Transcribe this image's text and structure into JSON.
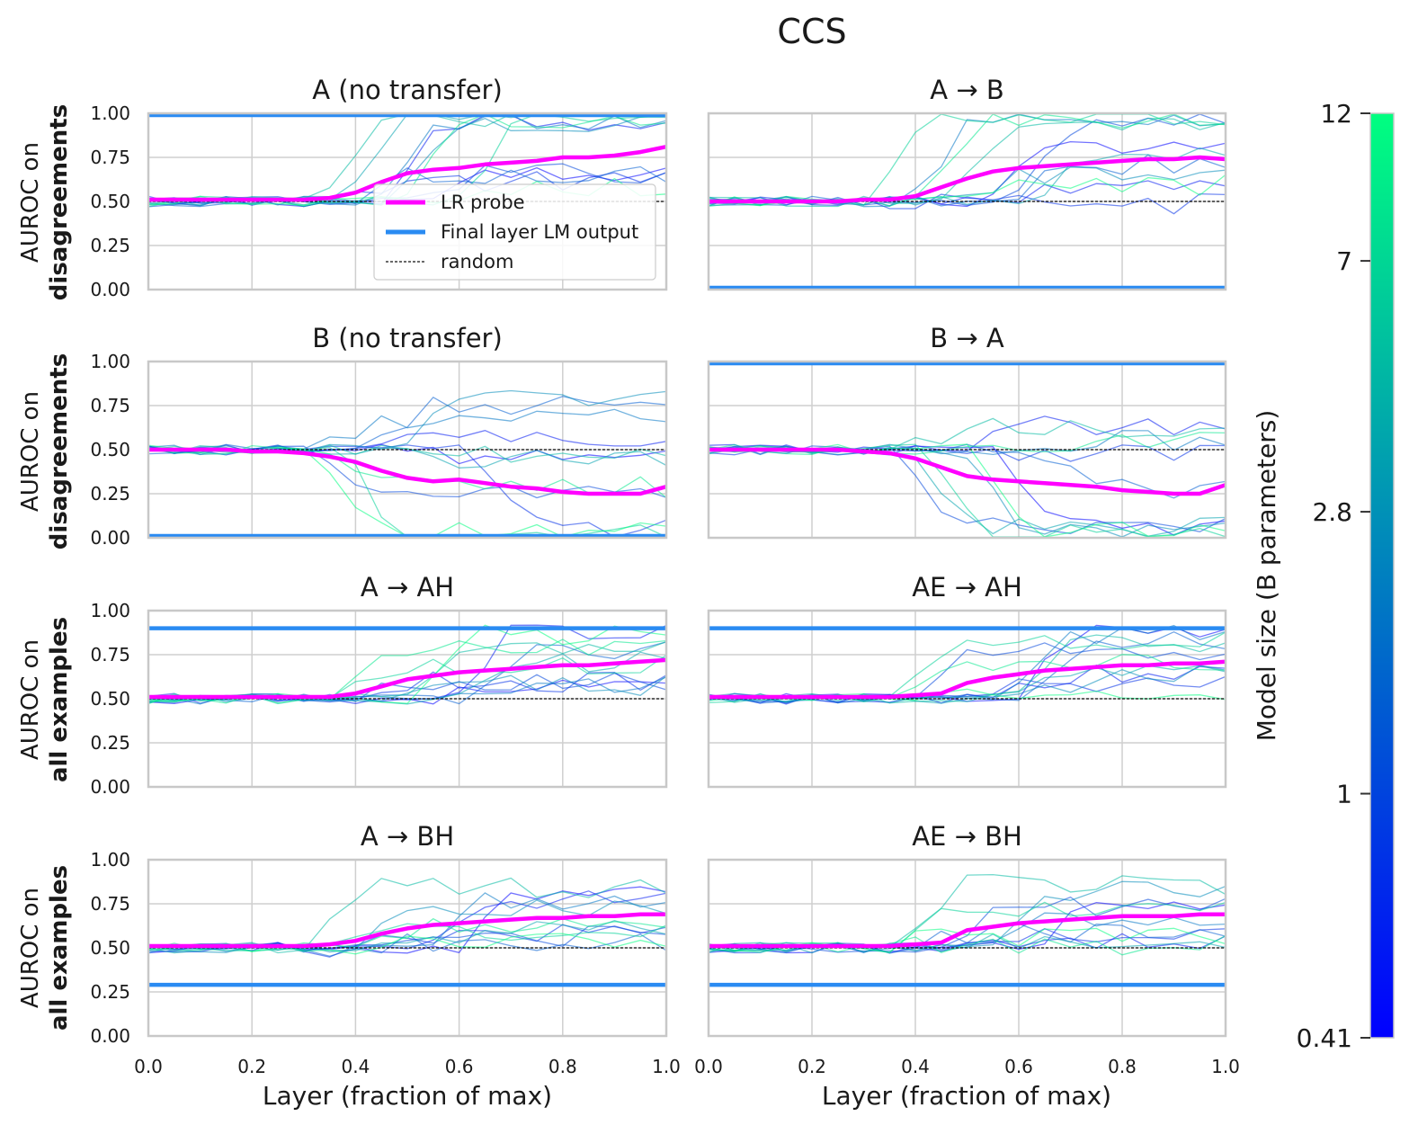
{
  "figure": {
    "suptitle": "CCS",
    "xlabel": "Layer (fraction of max)",
    "colors": {
      "lr_probe": "#ff00ff",
      "final_layer": "#2a8bf2",
      "random": "#111111",
      "grid": "#cfcfcf",
      "spine": "#c8c8c8"
    }
  },
  "row_labels": [
    {
      "line1": "AUROC on",
      "line2": "disagreements"
    },
    {
      "line1": "AUROC on",
      "line2": "disagreements"
    },
    {
      "line1": "AUROC on",
      "line2": "all examples"
    },
    {
      "line1": "AUROC on",
      "line2": "all examples"
    }
  ],
  "legend": {
    "items": [
      "LR probe",
      "Final layer LM output",
      "random"
    ],
    "location": "center-right of top-left panel"
  },
  "x_ticks": [
    "0.0",
    "0.2",
    "0.4",
    "0.6",
    "0.8",
    "1.0"
  ],
  "y_ticks": [
    "0.00",
    "0.25",
    "0.50",
    "0.75",
    "1.00"
  ],
  "colorbar": {
    "label": "Model size (B parameters)",
    "ticks": [
      {
        "label": "12",
        "value": 12
      },
      {
        "label": "7",
        "value": 7
      },
      {
        "label": "2.8",
        "value": 2.8
      },
      {
        "label": "1",
        "value": 1
      },
      {
        "label": "0.41",
        "value": 0.41
      }
    ],
    "colormap": "winter",
    "scale": "log"
  },
  "chart_data": [
    {
      "type": "line",
      "title": "A (no transfer)",
      "xlabel": "Layer (fraction of max)",
      "ylabel": "AUROC on disagreements",
      "xlim": [
        0,
        1
      ],
      "ylim": [
        0,
        1
      ],
      "x": [
        0.0,
        0.05,
        0.1,
        0.15,
        0.2,
        0.25,
        0.3,
        0.35,
        0.4,
        0.45,
        0.5,
        0.55,
        0.6,
        0.65,
        0.7,
        0.75,
        0.8,
        0.85,
        0.9,
        0.95,
        1.0
      ],
      "series": [
        {
          "name": "LR probe",
          "values": [
            0.51,
            0.51,
            0.51,
            0.51,
            0.51,
            0.51,
            0.51,
            0.52,
            0.55,
            0.61,
            0.66,
            0.68,
            0.69,
            0.71,
            0.72,
            0.73,
            0.75,
            0.75,
            0.76,
            0.78,
            0.81
          ]
        },
        {
          "name": "Final layer LM output",
          "constant": 0.99
        },
        {
          "name": "random",
          "constant": 0.5
        }
      ],
      "model_curves": "faint per-model curves (0.41B-12B), mostly near 0.5 before layer 0.4 then spreading toward 1.0"
    },
    {
      "type": "line",
      "title": "A → B",
      "xlabel": "Layer (fraction of max)",
      "ylabel": "",
      "xlim": [
        0,
        1
      ],
      "ylim": [
        0,
        1
      ],
      "x": [
        0.0,
        0.05,
        0.1,
        0.15,
        0.2,
        0.25,
        0.3,
        0.35,
        0.4,
        0.45,
        0.5,
        0.55,
        0.6,
        0.65,
        0.7,
        0.75,
        0.8,
        0.85,
        0.9,
        0.95,
        1.0
      ],
      "series": [
        {
          "name": "LR probe",
          "values": [
            0.5,
            0.5,
            0.5,
            0.5,
            0.5,
            0.5,
            0.51,
            0.51,
            0.53,
            0.58,
            0.63,
            0.67,
            0.69,
            0.7,
            0.71,
            0.72,
            0.73,
            0.74,
            0.74,
            0.75,
            0.74
          ]
        },
        {
          "name": "Final layer LM output",
          "constant": 0.01
        },
        {
          "name": "random",
          "constant": 0.5
        }
      ],
      "model_curves": "faint per-model curves, several rising toward 1.0 after layer 0.4"
    },
    {
      "type": "line",
      "title": "B (no transfer)",
      "xlabel": "Layer (fraction of max)",
      "ylabel": "AUROC on disagreements",
      "xlim": [
        0,
        1
      ],
      "ylim": [
        0,
        1
      ],
      "x": [
        0.0,
        0.05,
        0.1,
        0.15,
        0.2,
        0.25,
        0.3,
        0.35,
        0.4,
        0.45,
        0.5,
        0.55,
        0.6,
        0.65,
        0.7,
        0.75,
        0.8,
        0.85,
        0.9,
        0.95,
        1.0
      ],
      "series": [
        {
          "name": "LR probe",
          "values": [
            0.5,
            0.5,
            0.5,
            0.5,
            0.49,
            0.49,
            0.48,
            0.46,
            0.43,
            0.38,
            0.34,
            0.32,
            0.33,
            0.31,
            0.29,
            0.28,
            0.26,
            0.25,
            0.25,
            0.25,
            0.29
          ]
        },
        {
          "name": "Final layer LM output",
          "constant": 0.01
        },
        {
          "name": "random",
          "constant": 0.5
        }
      ],
      "model_curves": "faint per-model curves, many dropping toward 0.0 after layer 0.4"
    },
    {
      "type": "line",
      "title": "B → A",
      "xlabel": "Layer (fraction of max)",
      "ylabel": "",
      "xlim": [
        0,
        1
      ],
      "ylim": [
        0,
        1
      ],
      "x": [
        0.0,
        0.05,
        0.1,
        0.15,
        0.2,
        0.25,
        0.3,
        0.35,
        0.4,
        0.45,
        0.5,
        0.55,
        0.6,
        0.65,
        0.7,
        0.75,
        0.8,
        0.85,
        0.9,
        0.95,
        1.0
      ],
      "series": [
        {
          "name": "LR probe",
          "values": [
            0.5,
            0.5,
            0.5,
            0.5,
            0.5,
            0.5,
            0.49,
            0.48,
            0.45,
            0.4,
            0.35,
            0.33,
            0.32,
            0.31,
            0.3,
            0.29,
            0.27,
            0.26,
            0.25,
            0.25,
            0.3
          ]
        },
        {
          "name": "Final layer LM output",
          "constant": 0.99
        },
        {
          "name": "random",
          "constant": 0.5
        }
      ],
      "model_curves": "faint per-model curves, many dropping toward 0.0 after layer 0.4"
    },
    {
      "type": "line",
      "title": "A → AH",
      "xlabel": "Layer (fraction of max)",
      "ylabel": "AUROC on all examples",
      "xlim": [
        0,
        1
      ],
      "ylim": [
        0,
        1
      ],
      "x": [
        0.0,
        0.05,
        0.1,
        0.15,
        0.2,
        0.25,
        0.3,
        0.35,
        0.4,
        0.45,
        0.5,
        0.55,
        0.6,
        0.65,
        0.7,
        0.75,
        0.8,
        0.85,
        0.9,
        0.95,
        1.0
      ],
      "series": [
        {
          "name": "LR probe",
          "values": [
            0.51,
            0.51,
            0.51,
            0.51,
            0.51,
            0.51,
            0.51,
            0.51,
            0.53,
            0.57,
            0.61,
            0.63,
            0.65,
            0.66,
            0.67,
            0.68,
            0.69,
            0.69,
            0.7,
            0.71,
            0.72
          ]
        },
        {
          "name": "Final layer LM output",
          "constant": 0.9
        },
        {
          "name": "random",
          "constant": 0.5
        }
      ],
      "model_curves": "faint per-model curves rising to 0.55-0.9 after layer 0.4"
    },
    {
      "type": "line",
      "title": "AE → AH",
      "xlabel": "Layer (fraction of max)",
      "ylabel": "",
      "xlim": [
        0,
        1
      ],
      "ylim": [
        0,
        1
      ],
      "x": [
        0.0,
        0.05,
        0.1,
        0.15,
        0.2,
        0.25,
        0.3,
        0.35,
        0.4,
        0.45,
        0.5,
        0.55,
        0.6,
        0.65,
        0.7,
        0.75,
        0.8,
        0.85,
        0.9,
        0.95,
        1.0
      ],
      "series": [
        {
          "name": "LR probe",
          "values": [
            0.51,
            0.51,
            0.51,
            0.51,
            0.51,
            0.51,
            0.51,
            0.51,
            0.52,
            0.53,
            0.59,
            0.62,
            0.64,
            0.66,
            0.67,
            0.68,
            0.69,
            0.69,
            0.7,
            0.7,
            0.71
          ]
        },
        {
          "name": "Final layer LM output",
          "constant": 0.9
        },
        {
          "name": "random",
          "constant": 0.5
        }
      ],
      "model_curves": "faint per-model curves rising to 0.55-0.9 after layer 0.4"
    },
    {
      "type": "line",
      "title": "A → BH",
      "xlabel": "Layer (fraction of max)",
      "ylabel": "AUROC on all examples",
      "xlim": [
        0,
        1
      ],
      "ylim": [
        0,
        1
      ],
      "x": [
        0.0,
        0.05,
        0.1,
        0.15,
        0.2,
        0.25,
        0.3,
        0.35,
        0.4,
        0.45,
        0.5,
        0.55,
        0.6,
        0.65,
        0.7,
        0.75,
        0.8,
        0.85,
        0.9,
        0.95,
        1.0
      ],
      "series": [
        {
          "name": "LR probe",
          "values": [
            0.51,
            0.51,
            0.51,
            0.51,
            0.51,
            0.51,
            0.51,
            0.52,
            0.54,
            0.58,
            0.61,
            0.63,
            0.64,
            0.65,
            0.66,
            0.67,
            0.67,
            0.68,
            0.68,
            0.69,
            0.69
          ]
        },
        {
          "name": "Final layer LM output",
          "constant": 0.29
        },
        {
          "name": "random",
          "constant": 0.5
        }
      ],
      "model_curves": "faint per-model curves rising to 0.55-0.9 after layer 0.35"
    },
    {
      "type": "line",
      "title": "AE → BH",
      "xlabel": "Layer (fraction of max)",
      "ylabel": "",
      "xlim": [
        0,
        1
      ],
      "ylim": [
        0,
        1
      ],
      "x": [
        0.0,
        0.05,
        0.1,
        0.15,
        0.2,
        0.25,
        0.3,
        0.35,
        0.4,
        0.45,
        0.5,
        0.55,
        0.6,
        0.65,
        0.7,
        0.75,
        0.8,
        0.85,
        0.9,
        0.95,
        1.0
      ],
      "series": [
        {
          "name": "LR probe",
          "values": [
            0.51,
            0.51,
            0.51,
            0.51,
            0.51,
            0.51,
            0.51,
            0.51,
            0.52,
            0.53,
            0.6,
            0.62,
            0.64,
            0.65,
            0.66,
            0.67,
            0.68,
            0.68,
            0.68,
            0.69,
            0.69
          ]
        },
        {
          "name": "Final layer LM output",
          "constant": 0.29
        },
        {
          "name": "random",
          "constant": 0.5
        }
      ],
      "model_curves": "faint per-model curves rising to 0.55-0.9 after layer 0.4"
    }
  ]
}
